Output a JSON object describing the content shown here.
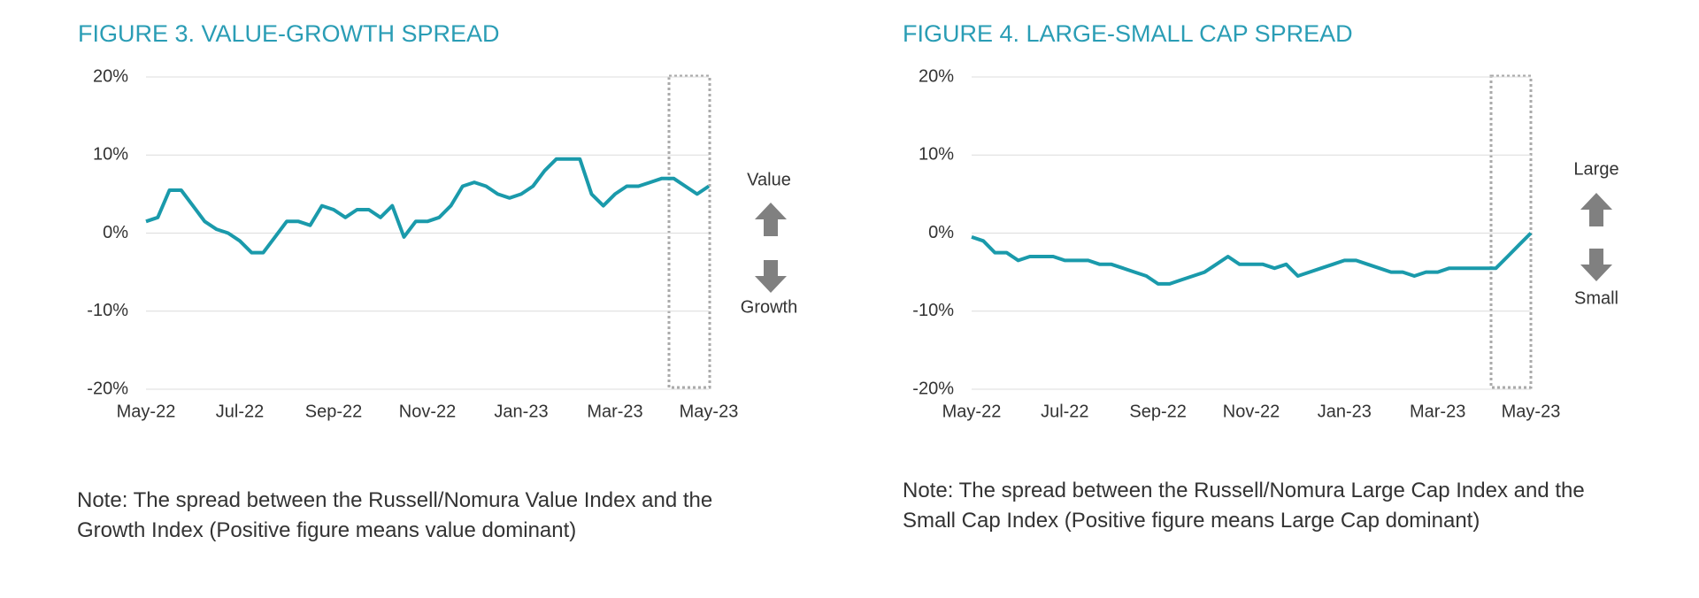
{
  "chart_data": [
    {
      "type": "line",
      "title": "FIGURE 3. VALUE-GROWTH SPREAD",
      "categories": [
        "May-22",
        null,
        null,
        null,
        null,
        null,
        null,
        null,
        "Jul-22",
        null,
        null,
        null,
        null,
        null,
        null,
        null,
        "Sep-22",
        null,
        null,
        null,
        null,
        null,
        null,
        null,
        "Nov-22",
        null,
        null,
        null,
        null,
        null,
        null,
        null,
        "Jan-23",
        null,
        null,
        null,
        null,
        null,
        null,
        null,
        "Mar-23",
        null,
        null,
        null,
        null,
        null,
        null,
        null,
        "May-23"
      ],
      "values": [
        1.5,
        2,
        5.5,
        5.5,
        3.5,
        1.5,
        0.5,
        0,
        -1,
        -2.5,
        -2.5,
        -0.5,
        1.5,
        1.5,
        1,
        3.5,
        3,
        2,
        3,
        3,
        2,
        3.5,
        -0.5,
        1.5,
        1.5,
        2,
        3.5,
        6,
        6.5,
        6,
        5,
        4.5,
        5,
        6,
        8,
        9.5,
        9.5,
        9.5,
        5,
        3.5,
        5,
        6,
        6,
        6.5,
        7,
        7,
        6,
        5,
        6
      ],
      "color": "#1a9aab",
      "ylim": [
        -20,
        20
      ],
      "yticks": [
        {
          "value": -20,
          "label": "-20%"
        },
        {
          "value": -10,
          "label": "-10%"
        },
        {
          "value": 0,
          "label": "0%"
        },
        {
          "value": 10,
          "label": "10%"
        },
        {
          "value": 20,
          "label": "20%"
        }
      ],
      "grid": true,
      "annotations": [
        "Value",
        "Growth"
      ],
      "note": "Note: The spread between the Russell/Nomura Value Index and the Growth Index (Positive figure means value dominant)"
    },
    {
      "type": "line",
      "title": "FIGURE 4. LARGE-SMALL CAP SPREAD",
      "categories": [
        "May-22",
        null,
        null,
        null,
        null,
        null,
        null,
        null,
        "Jul-22",
        null,
        null,
        null,
        null,
        null,
        null,
        null,
        "Sep-22",
        null,
        null,
        null,
        null,
        null,
        null,
        null,
        "Nov-22",
        null,
        null,
        null,
        null,
        null,
        null,
        null,
        "Jan-23",
        null,
        null,
        null,
        null,
        null,
        null,
        null,
        "Mar-23",
        null,
        null,
        null,
        null,
        null,
        null,
        null,
        "May-23"
      ],
      "values": [
        -0.5,
        -1,
        -2.5,
        -2.5,
        -3.5,
        -3,
        -3,
        -3,
        -3.5,
        -3.5,
        -3.5,
        -4,
        -4,
        -4.5,
        -5,
        -5.5,
        -6.5,
        -6.5,
        -6,
        -5.5,
        -5,
        -4,
        -3,
        -4,
        -4,
        -4,
        -4.5,
        -4,
        -5.5,
        -5,
        -4.5,
        -4,
        -3.5,
        -3.5,
        -4,
        -4.5,
        -5,
        -5,
        -5.5,
        -5,
        -5,
        -4.5,
        -4.5,
        -4.5,
        -4.5,
        -4.5,
        -3,
        -1.5,
        0
      ],
      "color": "#1a9aab",
      "ylim": [
        -20,
        20
      ],
      "yticks": [
        {
          "value": -20,
          "label": "-20%"
        },
        {
          "value": -10,
          "label": "-10%"
        },
        {
          "value": 0,
          "label": "0%"
        },
        {
          "value": 10,
          "label": "10%"
        },
        {
          "value": 20,
          "label": "20%"
        }
      ],
      "grid": true,
      "annotations": [
        "Large",
        "Small"
      ],
      "note": "Note: The spread between the Russell/Nomura Large Cap Index and the Small Cap Index (Positive figure means Large Cap dominant)"
    }
  ]
}
